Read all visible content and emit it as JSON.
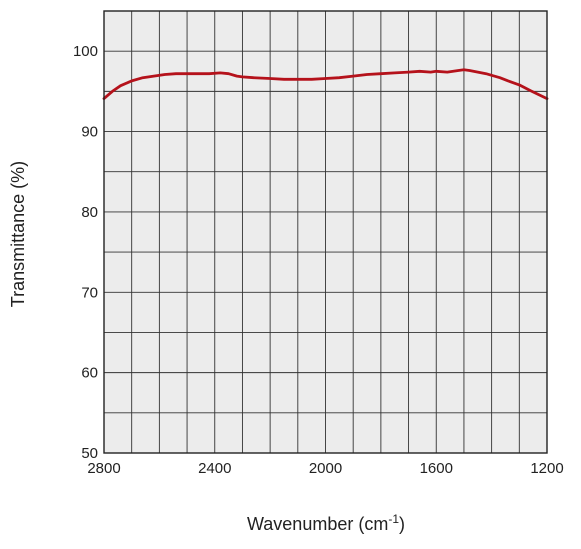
{
  "chart_data": {
    "type": "line",
    "title": "",
    "xlabel": {
      "main": "Wavenumber (cm",
      "sup": "-1",
      "tail": ")"
    },
    "ylabel": "Transmittance (%)",
    "xlim": [
      2800,
      1200
    ],
    "ylim": [
      50,
      105
    ],
    "x_reversed": true,
    "x_ticks": [
      2800,
      2400,
      2000,
      1600,
      1200
    ],
    "y_ticks": [
      50,
      60,
      70,
      80,
      90,
      100
    ],
    "x_grid_step": 100,
    "y_grid_step": 5,
    "grid": true,
    "colors": {
      "line": "#b5121b",
      "plot_bg": "#ececec",
      "grid": "#333333"
    },
    "series": [
      {
        "x": [
          2800,
          2770,
          2740,
          2700,
          2660,
          2620,
          2580,
          2540,
          2500,
          2460,
          2420,
          2380,
          2350,
          2320,
          2300,
          2260,
          2200,
          2150,
          2100,
          2050,
          2000,
          1950,
          1900,
          1850,
          1800,
          1750,
          1700,
          1660,
          1620,
          1600,
          1560,
          1520,
          1500,
          1480,
          1450,
          1420,
          1400,
          1370,
          1340,
          1300,
          1260,
          1230,
          1200
        ],
        "y": [
          94.1,
          95.0,
          95.7,
          96.3,
          96.7,
          96.9,
          97.1,
          97.2,
          97.2,
          97.2,
          97.2,
          97.3,
          97.2,
          96.9,
          96.8,
          96.7,
          96.6,
          96.5,
          96.5,
          96.5,
          96.6,
          96.7,
          96.9,
          97.1,
          97.2,
          97.3,
          97.4,
          97.5,
          97.4,
          97.5,
          97.4,
          97.6,
          97.7,
          97.6,
          97.4,
          97.2,
          97.0,
          96.7,
          96.3,
          95.8,
          95.1,
          94.6,
          94.1
        ]
      }
    ]
  }
}
